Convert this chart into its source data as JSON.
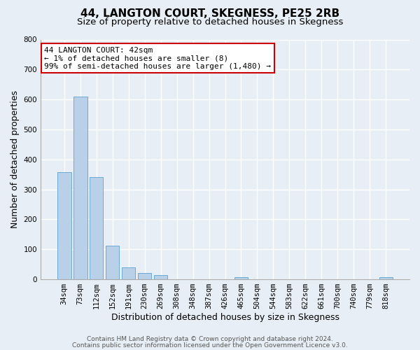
{
  "title": "44, LANGTON COURT, SKEGNESS, PE25 2RB",
  "subtitle": "Size of property relative to detached houses in Skegness",
  "xlabel": "Distribution of detached houses by size in Skegness",
  "ylabel": "Number of detached properties",
  "categories": [
    "34sqm",
    "73sqm",
    "112sqm",
    "152sqm",
    "191sqm",
    "230sqm",
    "269sqm",
    "308sqm",
    "348sqm",
    "387sqm",
    "426sqm",
    "465sqm",
    "504sqm",
    "544sqm",
    "583sqm",
    "622sqm",
    "661sqm",
    "700sqm",
    "740sqm",
    "779sqm",
    "818sqm"
  ],
  "values": [
    358,
    610,
    341,
    113,
    40,
    22,
    14,
    0,
    0,
    0,
    0,
    7,
    0,
    0,
    0,
    0,
    0,
    0,
    0,
    0,
    7
  ],
  "bar_color": "#b8d0e8",
  "bar_edge_color": "#6aaad4",
  "annotation_text": "44 LANGTON COURT: 42sqm\n← 1% of detached houses are smaller (8)\n99% of semi-detached houses are larger (1,480) →",
  "annotation_box_facecolor": "#ffffff",
  "annotation_box_edgecolor": "#cc0000",
  "ylim": [
    0,
    800
  ],
  "yticks": [
    0,
    100,
    200,
    300,
    400,
    500,
    600,
    700,
    800
  ],
  "background_color": "#e8eef5",
  "plot_bg_color": "#e8eef5",
  "grid_color": "#ffffff",
  "footer_line1": "Contains HM Land Registry data © Crown copyright and database right 2024.",
  "footer_line2": "Contains public sector information licensed under the Open Government Licence v3.0.",
  "title_fontsize": 11,
  "subtitle_fontsize": 9.5,
  "xlabel_fontsize": 9,
  "ylabel_fontsize": 9,
  "tick_fontsize": 7.5,
  "annotation_fontsize": 8,
  "footer_fontsize": 6.5
}
